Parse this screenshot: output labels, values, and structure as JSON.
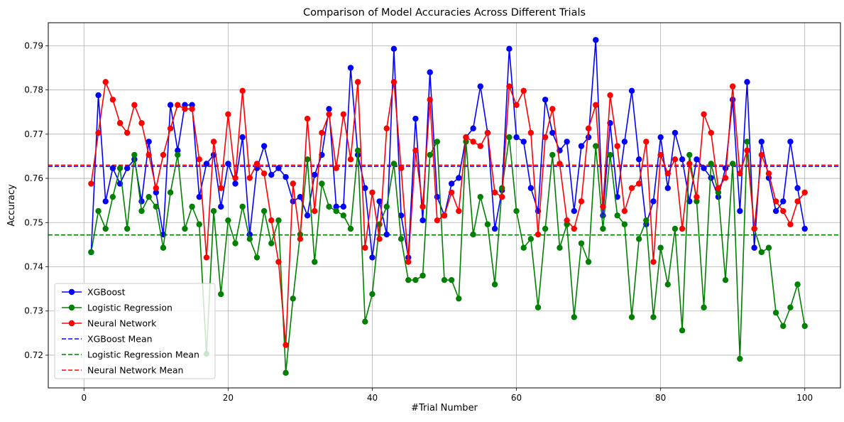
{
  "chart_data": {
    "type": "line",
    "title": "Comparison of Model Accuracies Across Different Trials",
    "xlabel": "#Trial Number",
    "ylabel": "Accuracy",
    "xlim": [
      -4.95,
      104.95
    ],
    "ylim": [
      0.7126,
      0.7952
    ],
    "x_ticks": [
      0,
      20,
      40,
      60,
      80,
      100
    ],
    "y_ticks": [
      0.72,
      0.73,
      0.74,
      0.75,
      0.76,
      0.77,
      0.78,
      0.79
    ],
    "grid": true,
    "legend_position": "lower-left",
    "x": [
      1,
      2,
      3,
      4,
      5,
      6,
      7,
      8,
      9,
      10,
      11,
      12,
      13,
      14,
      15,
      16,
      17,
      18,
      19,
      20,
      21,
      22,
      23,
      24,
      25,
      26,
      27,
      28,
      29,
      30,
      31,
      32,
      33,
      34,
      35,
      36,
      37,
      38,
      39,
      40,
      41,
      42,
      43,
      44,
      45,
      46,
      47,
      48,
      49,
      50,
      51,
      52,
      53,
      54,
      55,
      56,
      57,
      58,
      59,
      60,
      61,
      62,
      63,
      64,
      65,
      66,
      67,
      68,
      69,
      70,
      71,
      72,
      73,
      74,
      75,
      76,
      77,
      78,
      79,
      80,
      81,
      82,
      83,
      84,
      85,
      86,
      87,
      88,
      89,
      90,
      91,
      92,
      93,
      94,
      95,
      96,
      97,
      98,
      99,
      100
    ],
    "series": [
      {
        "name": "XGBoost",
        "color": "#0000ff",
        "marker": "circle",
        "values": [
          0.7433,
          0.7788,
          0.7548,
          0.7623,
          0.7588,
          0.7623,
          0.7643,
          0.7548,
          0.7683,
          0.7568,
          0.7473,
          0.7766,
          0.7663,
          0.7766,
          0.7766,
          0.7558,
          0.7633,
          0.7653,
          0.7536,
          0.7633,
          0.7588,
          0.7693,
          0.7473,
          0.7623,
          0.7673,
          0.7608,
          0.7623,
          0.7603,
          0.7548,
          0.7558,
          0.7516,
          0.7608,
          0.7653,
          0.7757,
          0.7536,
          0.7536,
          0.785,
          0.7653,
          0.7578,
          0.7421,
          0.7548,
          0.7473,
          0.7893,
          0.7516,
          0.7421,
          0.7735,
          0.7505,
          0.784,
          0.7558,
          0.7516,
          0.7588,
          0.7601,
          0.7693,
          0.7713,
          0.7808,
          0.7703,
          0.7486,
          0.7573,
          0.7893,
          0.7693,
          0.7683,
          0.7578,
          0.7526,
          0.7778,
          0.7703,
          0.7663,
          0.7683,
          0.7526,
          0.7673,
          0.7693,
          0.7913,
          0.7516,
          0.7725,
          0.7558,
          0.7683,
          0.7798,
          0.7643,
          0.7496,
          0.7548,
          0.7693,
          0.7578,
          0.7703,
          0.7643,
          0.7548,
          0.7643,
          0.7623,
          0.7601,
          0.7558,
          0.7623,
          0.7778,
          0.7526,
          0.7818,
          0.7443,
          0.7683,
          0.7601,
          0.7526,
          0.7548,
          0.7683,
          0.7578,
          0.7486
        ]
      },
      {
        "name": "Logistic Regression",
        "color": "#008000",
        "marker": "circle",
        "values": [
          0.7433,
          0.7526,
          0.7486,
          0.7558,
          0.7623,
          0.7486,
          0.7653,
          0.7526,
          0.7558,
          0.7536,
          0.7443,
          0.7568,
          0.7653,
          0.7486,
          0.7536,
          0.7496,
          0.7203,
          0.7526,
          0.7338,
          0.7505,
          0.7453,
          0.7536,
          0.7463,
          0.7421,
          0.7526,
          0.7453,
          0.7505,
          0.716,
          0.7328,
          0.7473,
          0.7643,
          0.7411,
          0.7588,
          0.7536,
          0.7526,
          0.7516,
          0.7486,
          0.7663,
          0.7276,
          0.7338,
          0.7496,
          0.7536,
          0.7633,
          0.7463,
          0.737,
          0.737,
          0.738,
          0.7653,
          0.7683,
          0.737,
          0.737,
          0.7328,
          0.7683,
          0.7473,
          0.7558,
          0.7496,
          0.736,
          0.7578,
          0.7693,
          0.7526,
          0.7443,
          0.7463,
          0.7308,
          0.7486,
          0.7653,
          0.7443,
          0.7496,
          0.7286,
          0.7453,
          0.7411,
          0.7673,
          0.7486,
          0.7653,
          0.7516,
          0.7496,
          0.7286,
          0.7463,
          0.7505,
          0.7286,
          0.7443,
          0.736,
          0.7486,
          0.7256,
          0.7653,
          0.7548,
          0.7308,
          0.7633,
          0.7568,
          0.737,
          0.7633,
          0.7192,
          0.7683,
          0.7486,
          0.7433,
          0.7443,
          0.7296,
          0.7266,
          0.7308,
          0.736,
          0.7266
        ]
      },
      {
        "name": "Neural Network",
        "color": "#ff0000",
        "marker": "circle",
        "values": [
          0.7588,
          0.7703,
          0.7818,
          0.7778,
          0.7725,
          0.7703,
          0.7766,
          0.7725,
          0.7653,
          0.7578,
          0.7653,
          0.7713,
          0.7766,
          0.7757,
          0.7757,
          0.7643,
          0.7421,
          0.7683,
          0.7578,
          0.7745,
          0.7601,
          0.7798,
          0.7601,
          0.7633,
          0.7611,
          0.7505,
          0.7411,
          0.7223,
          0.7588,
          0.7463,
          0.7735,
          0.7526,
          0.7703,
          0.7745,
          0.7623,
          0.7745,
          0.7643,
          0.7818,
          0.7443,
          0.7568,
          0.7463,
          0.7713,
          0.7818,
          0.7623,
          0.7411,
          0.7663,
          0.7536,
          0.7778,
          0.7505,
          0.7516,
          0.7568,
          0.7526,
          0.7693,
          0.7683,
          0.7673,
          0.7703,
          0.7568,
          0.7558,
          0.7808,
          0.7766,
          0.7798,
          0.7703,
          0.7473,
          0.7693,
          0.7757,
          0.7633,
          0.7505,
          0.7486,
          0.7548,
          0.7713,
          0.7766,
          0.7536,
          0.7788,
          0.7673,
          0.7526,
          0.7578,
          0.7588,
          0.7683,
          0.7411,
          0.7653,
          0.7611,
          0.7643,
          0.7486,
          0.7633,
          0.7558,
          0.7745,
          0.7703,
          0.7578,
          0.7601,
          0.7808,
          0.7611,
          0.7663,
          0.7486,
          0.7653,
          0.7611,
          0.7548,
          0.7526,
          0.7496,
          0.7548,
          0.7568
        ]
      }
    ],
    "mean_lines": [
      {
        "name": "XGBoost Mean",
        "color": "#0000ff",
        "style": "dashed",
        "value": 0.7627
      },
      {
        "name": "Logistic Regression Mean",
        "color": "#008000",
        "style": "dashed",
        "value": 0.7472
      },
      {
        "name": "Neural Network Mean",
        "color": "#ff0000",
        "style": "dashed",
        "value": 0.763
      }
    ]
  }
}
